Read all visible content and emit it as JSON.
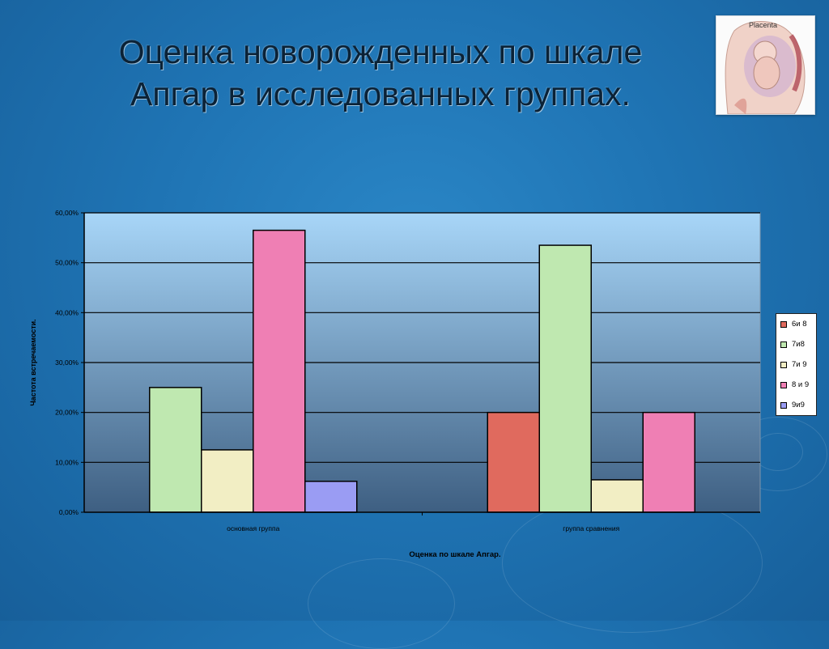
{
  "slide": {
    "title_line1": "Оценка новорожденных по шкале",
    "title_line2": "Апгар в исследованных группах."
  },
  "photo": {
    "caption": "Placenta"
  },
  "chart_data": {
    "type": "bar",
    "title": "",
    "xlabel": "Оценка по шкале Апгар.",
    "ylabel": "Частота встречаемости.",
    "ylim": [
      0,
      60
    ],
    "y_ticks": [
      "0,00%",
      "10,00%",
      "20,00%",
      "30,00%",
      "40,00%",
      "50,00%",
      "60,00%"
    ],
    "grid": true,
    "legend_position": "right",
    "categories": [
      "основная группа",
      "группа сравнения"
    ],
    "series": [
      {
        "name": "6и 8",
        "color": "#e06a5e",
        "values": [
          0,
          20
        ]
      },
      {
        "name": "7и8",
        "color": "#bfe8b0",
        "values": [
          25,
          53.5
        ]
      },
      {
        "name": "7и 9",
        "color": "#f2eec4",
        "values": [
          12.5,
          6.5
        ]
      },
      {
        "name": "8 и 9",
        "color": "#ef7fb4",
        "values": [
          56.5,
          20
        ]
      },
      {
        "name": "9и9",
        "color": "#9a9cf3",
        "values": [
          6.2,
          0
        ]
      }
    ]
  }
}
